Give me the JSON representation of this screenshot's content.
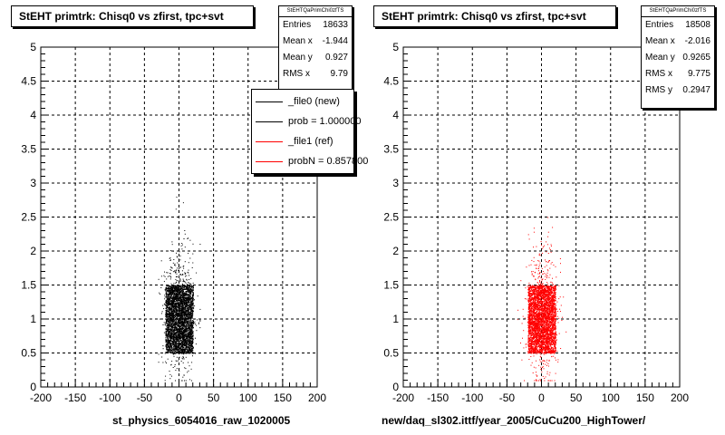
{
  "chart_data": [
    {
      "type": "scatter",
      "title": "StEHT primtrk: Chisq0 vs zfirst, tpc+svt",
      "xlabel": "st_physics_6054016_raw_1020005",
      "ylabel": "",
      "xlim": [
        -200,
        200
      ],
      "ylim": [
        0,
        5
      ],
      "xticks": [
        "-200",
        "-150",
        "-100",
        "-50",
        "0",
        "50",
        "100",
        "150",
        "200"
      ],
      "yticks": [
        "0",
        "0.5",
        "1",
        "1.5",
        "2",
        "2.5",
        "3",
        "3.5",
        "4",
        "4.5",
        "5"
      ],
      "grid": true,
      "marker_color": "#000000",
      "stats": {
        "name": "StEHTQaPrimChi0zfTS",
        "rows": [
          {
            "label": "Entries",
            "value": "18633"
          },
          {
            "label": "Mean x",
            "value": "-1.944"
          },
          {
            "label": "Mean y",
            "value": "0.927"
          },
          {
            "label": "RMS x",
            "value": "9.79"
          }
        ]
      },
      "legend": {
        "placement": "top-right",
        "entries": [
          {
            "label": "_file0 (new)",
            "color": "#000000"
          },
          {
            "label": "prob = 1.000000",
            "color": "#000000"
          },
          {
            "label": "_file1 (ref)",
            "color": "#ff0000"
          },
          {
            "label": "probN = 0.857800",
            "color": "#ff0000"
          }
        ]
      },
      "distribution": {
        "x_core": [
          -20,
          20
        ],
        "y_core": [
          0.5,
          1.5
        ],
        "x_halo": [
          -30,
          30
        ],
        "y_halo": [
          0.1,
          2.8
        ]
      }
    },
    {
      "type": "scatter",
      "title": "StEHT primtrk: Chisq0 vs zfirst, tpc+svt",
      "xlabel": "new/daq_sl302.ittf/year_2005/CuCu200_HighTower/",
      "ylabel": "",
      "xlim": [
        -200,
        200
      ],
      "ylim": [
        0,
        5
      ],
      "xticks": [
        "-200",
        "-150",
        "-100",
        "-50",
        "0",
        "50",
        "100",
        "150",
        "200"
      ],
      "yticks": [
        "0",
        "0.5",
        "1",
        "1.5",
        "2",
        "2.5",
        "3",
        "3.5",
        "4",
        "4.5",
        "5"
      ],
      "grid": true,
      "marker_color": "#ff0000",
      "stats": {
        "name": "StEHTQaPrimChi0zfTS",
        "rows": [
          {
            "label": "Entries",
            "value": "18508"
          },
          {
            "label": "Mean x",
            "value": "-2.016"
          },
          {
            "label": "Mean y",
            "value": "0.9265"
          },
          {
            "label": "RMS x",
            "value": "9.775"
          },
          {
            "label": "RMS y",
            "value": "0.2947"
          }
        ]
      },
      "distribution": {
        "x_core": [
          -20,
          20
        ],
        "y_core": [
          0.5,
          1.5
        ],
        "x_halo": [
          -35,
          35
        ],
        "y_halo": [
          0.1,
          2.5
        ]
      }
    }
  ]
}
